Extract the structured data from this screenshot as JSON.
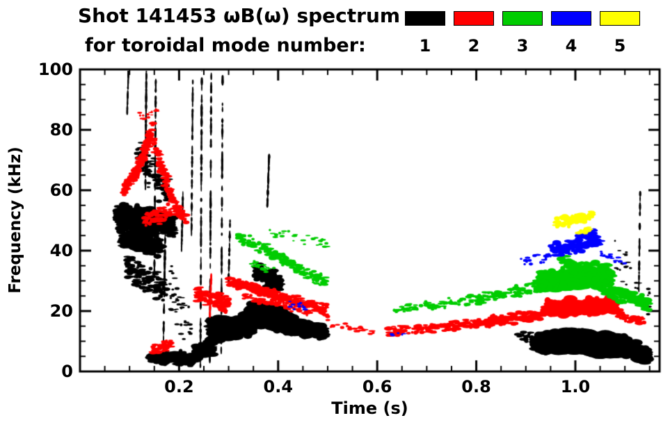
{
  "chart_data": {
    "type": "scatter",
    "title": "Shot 141453 ωB(ω) spectrum",
    "subtitle": "for toroidal mode number:",
    "xlabel": "Time (s)",
    "ylabel": "Frequency (kHz)",
    "xlim": [
      0.0,
      1.17
    ],
    "ylim": [
      0,
      100
    ],
    "xticks": [
      "0.2",
      "0.4",
      "0.6",
      "0.8",
      "1.0"
    ],
    "yticks": [
      "0",
      "20",
      "40",
      "60",
      "80",
      "100"
    ],
    "x_minor_step": 0.05,
    "y_minor_step": 5,
    "grid": false,
    "legend_position": "top",
    "legend": [
      {
        "label": "1",
        "color": "#000000"
      },
      {
        "label": "2",
        "color": "#ff0000"
      },
      {
        "label": "3",
        "color": "#00cc00"
      },
      {
        "label": "4",
        "color": "#0000ff"
      },
      {
        "label": "5",
        "color": "#ffff00"
      }
    ],
    "series": [
      {
        "name": "n=1",
        "color": "#000000",
        "clusters": [
          {
            "t": [
              0.075,
              0.155
            ],
            "f": [
              51,
              49
            ],
            "s": 5,
            "n": 380,
            "r": 4.5
          },
          {
            "t": [
              0.155,
              0.19
            ],
            "f": [
              50,
              47
            ],
            "s": 4,
            "n": 120,
            "r": 4
          },
          {
            "t": [
              0.085,
              0.165
            ],
            "f": [
              44,
              41
            ],
            "s": 3.5,
            "n": 220,
            "r": 4
          },
          {
            "t": [
              0.095,
              0.175
            ],
            "f": [
              34,
              27
            ],
            "s": 5,
            "n": 130,
            "r": 3
          },
          {
            "t": [
              0.115,
              0.185
            ],
            "f": [
              72,
              58
            ],
            "s": 7,
            "n": 90,
            "r": 2.8
          },
          {
            "t": [
              0.18,
              0.225
            ],
            "f": [
              30,
              12
            ],
            "s": 9,
            "n": 40,
            "r": 2.2
          },
          {
            "t": [
              0.095,
              0.098
            ],
            "f": [
              85,
              100
            ],
            "s": 1,
            "n": 25,
            "r": 1.8,
            "v": true
          },
          {
            "t": [
              0.132,
              0.134
            ],
            "f": [
              60,
              100
            ],
            "s": 1.2,
            "n": 70,
            "r": 2,
            "v": true
          },
          {
            "t": [
              0.15,
              0.153
            ],
            "f": [
              30,
              97
            ],
            "s": 1.2,
            "n": 80,
            "r": 2,
            "v": true
          },
          {
            "t": [
              0.168,
              0.172
            ],
            "f": [
              5,
              45
            ],
            "s": 1.5,
            "n": 50,
            "r": 2,
            "v": true
          },
          {
            "t": [
              0.205,
              0.208
            ],
            "f": [
              40,
              60
            ],
            "s": 1,
            "n": 30,
            "r": 2,
            "v": true
          },
          {
            "t": [
              0.225,
              0.228
            ],
            "f": [
              45,
              100
            ],
            "s": 1,
            "n": 50,
            "r": 2,
            "v": true
          },
          {
            "t": [
              0.243,
              0.246
            ],
            "f": [
              2,
              100
            ],
            "s": 1,
            "n": 90,
            "r": 2,
            "v": true
          },
          {
            "t": [
              0.262,
              0.265
            ],
            "f": [
              2,
              100
            ],
            "s": 1,
            "n": 90,
            "r": 2,
            "v": true
          },
          {
            "t": [
              0.285,
              0.288
            ],
            "f": [
              5,
              100
            ],
            "s": 1.2,
            "n": 80,
            "r": 2,
            "v": true
          },
          {
            "t": [
              0.3,
              0.303
            ],
            "f": [
              30,
              50
            ],
            "s": 1,
            "n": 25,
            "r": 2,
            "v": true
          },
          {
            "t": [
              0.378,
              0.382
            ],
            "f": [
              54,
              72
            ],
            "s": 1.2,
            "n": 40,
            "r": 2,
            "v": true
          },
          {
            "t": [
              1.128,
              1.131
            ],
            "f": [
              25,
              60
            ],
            "s": 1,
            "n": 30,
            "r": 1.8,
            "v": true
          },
          {
            "t": [
              0.14,
              0.23
            ],
            "f": [
              5,
              4
            ],
            "s": 2.5,
            "n": 140,
            "r": 4
          },
          {
            "t": [
              0.23,
              0.27
            ],
            "f": [
              6,
              8
            ],
            "s": 3,
            "n": 80,
            "r": 4.5
          },
          {
            "t": [
              0.265,
              0.345
            ],
            "f": [
              14,
              15
            ],
            "s": 4,
            "n": 330,
            "r": 6
          },
          {
            "t": [
              0.345,
              0.375
            ],
            "f": [
              19,
              18
            ],
            "s": 4,
            "n": 160,
            "r": 6.5
          },
          {
            "t": [
              0.375,
              0.405
            ],
            "f": [
              19,
              17
            ],
            "s": 4,
            "n": 160,
            "r": 6.5
          },
          {
            "t": [
              0.405,
              0.435
            ],
            "f": [
              17,
              15
            ],
            "s": 3.5,
            "n": 140,
            "r": 6
          },
          {
            "t": [
              0.435,
              0.465
            ],
            "f": [
              15,
              14
            ],
            "s": 3,
            "n": 120,
            "r": 5.5
          },
          {
            "t": [
              0.465,
              0.495
            ],
            "f": [
              14,
              13
            ],
            "s": 2.5,
            "n": 90,
            "r": 5
          },
          {
            "t": [
              0.355,
              0.405
            ],
            "f": [
              33,
              29
            ],
            "s": 3.5,
            "n": 90,
            "r": 4.5
          },
          {
            "t": [
              0.925,
              0.955
            ],
            "f": [
              9,
              10
            ],
            "s": 3.5,
            "n": 150,
            "r": 7
          },
          {
            "t": [
              0.955,
              0.985
            ],
            "f": [
              10,
              10
            ],
            "s": 3.8,
            "n": 160,
            "r": 7.5
          },
          {
            "t": [
              0.985,
              1.015
            ],
            "f": [
              10,
              10
            ],
            "s": 3.8,
            "n": 160,
            "r": 7.5
          },
          {
            "t": [
              1.015,
              1.045
            ],
            "f": [
              10,
              9
            ],
            "s": 3.8,
            "n": 160,
            "r": 7.5
          },
          {
            "t": [
              1.045,
              1.075
            ],
            "f": [
              9,
              9
            ],
            "s": 3.8,
            "n": 150,
            "r": 7
          },
          {
            "t": [
              1.075,
              1.105
            ],
            "f": [
              9,
              8
            ],
            "s": 3.5,
            "n": 140,
            "r": 7
          },
          {
            "t": [
              1.105,
              1.145
            ],
            "f": [
              8,
              5
            ],
            "s": 3,
            "n": 120,
            "r": 6
          },
          {
            "t": [
              1.07,
              1.15
            ],
            "f": [
              42,
              25
            ],
            "s": 8,
            "n": 25,
            "r": 2
          },
          {
            "t": [
              0.88,
              0.925
            ],
            "f": [
              12,
              11
            ],
            "s": 2,
            "n": 25,
            "r": 3
          }
        ]
      },
      {
        "name": "n=2",
        "color": "#ff0000",
        "clusters": [
          {
            "t": [
              0.088,
              0.118
            ],
            "f": [
              60,
              67
            ],
            "s": 2.5,
            "n": 70,
            "r": 3
          },
          {
            "t": [
              0.118,
              0.148
            ],
            "f": [
              68,
              80
            ],
            "s": 3.5,
            "n": 90,
            "r": 3
          },
          {
            "t": [
              0.12,
              0.16
            ],
            "f": [
              84,
              87
            ],
            "s": 2,
            "n": 14,
            "r": 2
          },
          {
            "t": [
              0.148,
              0.185
            ],
            "f": [
              76,
              58
            ],
            "s": 4,
            "n": 80,
            "r": 3
          },
          {
            "t": [
              0.185,
              0.215
            ],
            "f": [
              56,
              50
            ],
            "s": 2.5,
            "n": 50,
            "r": 3
          },
          {
            "t": [
              0.13,
              0.185
            ],
            "f": [
              50,
              53
            ],
            "s": 3,
            "n": 70,
            "r": 3
          },
          {
            "t": [
              0.145,
              0.185
            ],
            "f": [
              7,
              9
            ],
            "s": 2,
            "n": 45,
            "r": 3
          },
          {
            "t": [
              0.235,
              0.3
            ],
            "f": [
              26,
              22
            ],
            "s": 3,
            "n": 100,
            "r": 3.2
          },
          {
            "t": [
              0.262,
              0.265
            ],
            "f": [
              18,
              32
            ],
            "s": 1,
            "n": 25,
            "r": 2,
            "v": true
          },
          {
            "t": [
              0.3,
              0.5
            ],
            "f": [
              30,
              20
            ],
            "s": 2.2,
            "n": 260,
            "r": 3.2
          },
          {
            "t": [
              0.33,
              0.47
            ],
            "f": [
              25,
              19
            ],
            "s": 1.2,
            "n": 70,
            "r": 2.5
          },
          {
            "t": [
              0.5,
              0.6
            ],
            "f": [
              16,
              13
            ],
            "s": 1.5,
            "n": 22,
            "r": 2.5
          },
          {
            "t": [
              0.62,
              0.8
            ],
            "f": [
              13,
              16
            ],
            "s": 2,
            "n": 130,
            "r": 3
          },
          {
            "t": [
              0.8,
              0.94
            ],
            "f": [
              16,
              19
            ],
            "s": 2,
            "n": 130,
            "r": 3.5
          },
          {
            "t": [
              0.94,
              1.08
            ],
            "f": [
              21,
              22
            ],
            "s": 3,
            "n": 280,
            "r": 5
          },
          {
            "t": [
              1.08,
              1.14
            ],
            "f": [
              19,
              16
            ],
            "s": 2,
            "n": 45,
            "r": 3
          }
        ]
      },
      {
        "name": "n=3",
        "color": "#00cc00",
        "clusters": [
          {
            "t": [
              0.32,
              0.5
            ],
            "f": [
              45,
              29
            ],
            "s": 2.5,
            "n": 170,
            "r": 3
          },
          {
            "t": [
              0.38,
              0.5
            ],
            "f": [
              47,
              42
            ],
            "s": 2,
            "n": 28,
            "r": 2.2
          },
          {
            "t": [
              0.34,
              0.4
            ],
            "f": [
              36,
              33
            ],
            "s": 1.5,
            "n": 25,
            "r": 2.2
          },
          {
            "t": [
              0.63,
              0.8
            ],
            "f": [
              20,
              24
            ],
            "s": 2,
            "n": 70,
            "r": 2.6
          },
          {
            "t": [
              0.8,
              0.93
            ],
            "f": [
              24,
              28
            ],
            "s": 2.5,
            "n": 90,
            "r": 3
          },
          {
            "t": [
              0.93,
              1.07
            ],
            "f": [
              30,
              31
            ],
            "s": 3.5,
            "n": 300,
            "r": 6
          },
          {
            "t": [
              0.97,
              1.07
            ],
            "f": [
              36,
              34
            ],
            "s": 2.5,
            "n": 80,
            "r": 4
          },
          {
            "t": [
              1.05,
              1.15
            ],
            "f": [
              28,
              22
            ],
            "s": 2.5,
            "n": 100,
            "r": 4.5
          }
        ]
      },
      {
        "name": "n=4",
        "color": "#0000ff",
        "clusters": [
          {
            "t": [
              0.89,
              0.95
            ],
            "f": [
              36,
              38
            ],
            "s": 2,
            "n": 20,
            "r": 2.5
          },
          {
            "t": [
              0.95,
              1.05
            ],
            "f": [
              40,
              43
            ],
            "s": 2.8,
            "n": 110,
            "r": 4
          },
          {
            "t": [
              1.0,
              1.04
            ],
            "f": [
              44,
              46
            ],
            "s": 1.5,
            "n": 30,
            "r": 3
          },
          {
            "t": [
              1.05,
              1.1
            ],
            "f": [
              39,
              36
            ],
            "s": 1.5,
            "n": 18,
            "r": 2.2
          },
          {
            "t": [
              0.42,
              0.46
            ],
            "f": [
              22,
              21
            ],
            "s": 1.5,
            "n": 10,
            "r": 2
          },
          {
            "t": [
              0.62,
              0.66
            ],
            "f": [
              12,
              12
            ],
            "s": 1,
            "n": 6,
            "r": 2
          }
        ]
      },
      {
        "name": "n=5",
        "color": "#ffff00",
        "clusters": [
          {
            "t": [
              0.96,
              1.035
            ],
            "f": [
              49,
              52
            ],
            "s": 2.2,
            "n": 60,
            "r": 3.5
          },
          {
            "t": [
              1.005,
              1.03
            ],
            "f": [
              46,
              47
            ],
            "s": 1,
            "n": 15,
            "r": 3
          }
        ]
      }
    ]
  }
}
